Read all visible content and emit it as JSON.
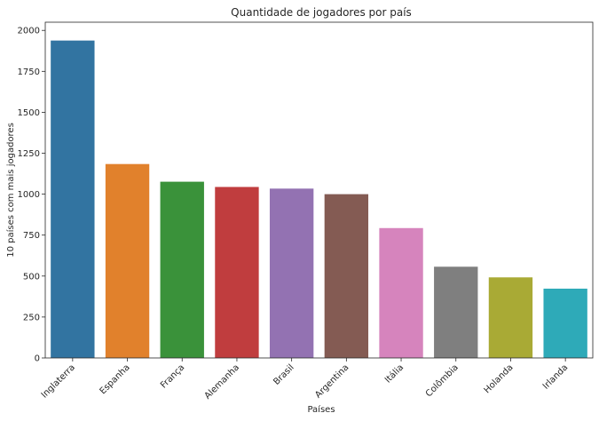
{
  "chart_data": {
    "type": "bar",
    "title": "Quantidade de jogadores por país",
    "xlabel": "Países",
    "ylabel": "10 países com mais jogadores",
    "categories": [
      "Inglaterra",
      "Espanha",
      "França",
      "Alemanha",
      "Brasil",
      "Argentina",
      "Itália",
      "Colômbia",
      "Holanda",
      "Irlanda"
    ],
    "values": [
      1938,
      1184,
      1076,
      1044,
      1034,
      1000,
      793,
      557,
      492,
      423
    ],
    "colors": [
      "#3274a1",
      "#e1812c",
      "#3a923a",
      "#c03d3e",
      "#9372b2",
      "#845b53",
      "#d684bd",
      "#7f7f7f",
      "#a9aa35",
      "#2eaab8"
    ],
    "ylim": [
      0,
      2050
    ],
    "yticks": [
      0,
      250,
      500,
      750,
      1000,
      1250,
      1500,
      1750,
      2000
    ],
    "grid": false,
    "legend": "none"
  }
}
